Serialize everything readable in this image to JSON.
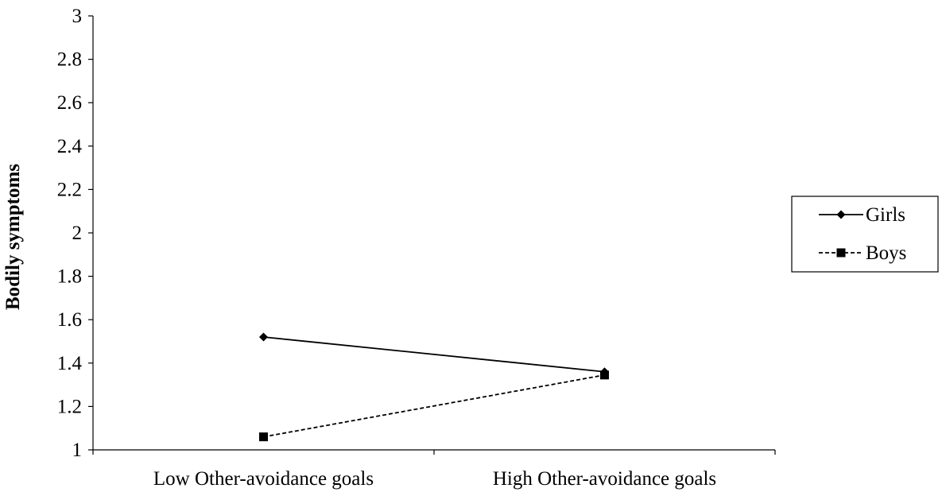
{
  "chart_data": {
    "type": "line",
    "title": "",
    "xlabel": "",
    "ylabel": "Bodily symptoms",
    "categories": [
      "Low Other-avoidance goals",
      "High Other-avoidance goals"
    ],
    "ylim": [
      1,
      3
    ],
    "yticks": [
      "1",
      "1.2",
      "1.4",
      "1.6",
      "1.8",
      "2",
      "2.2",
      "2.4",
      "2.6",
      "2.8",
      "3"
    ],
    "grid": false,
    "legend_position": "right",
    "series": [
      {
        "name": "Girls",
        "values": [
          1.52,
          1.36
        ],
        "line_style": "solid",
        "marker": "diamond",
        "color": "#000000"
      },
      {
        "name": "Boys",
        "values": [
          1.06,
          1.345
        ],
        "line_style": "dashed",
        "marker": "square",
        "color": "#000000"
      }
    ]
  }
}
